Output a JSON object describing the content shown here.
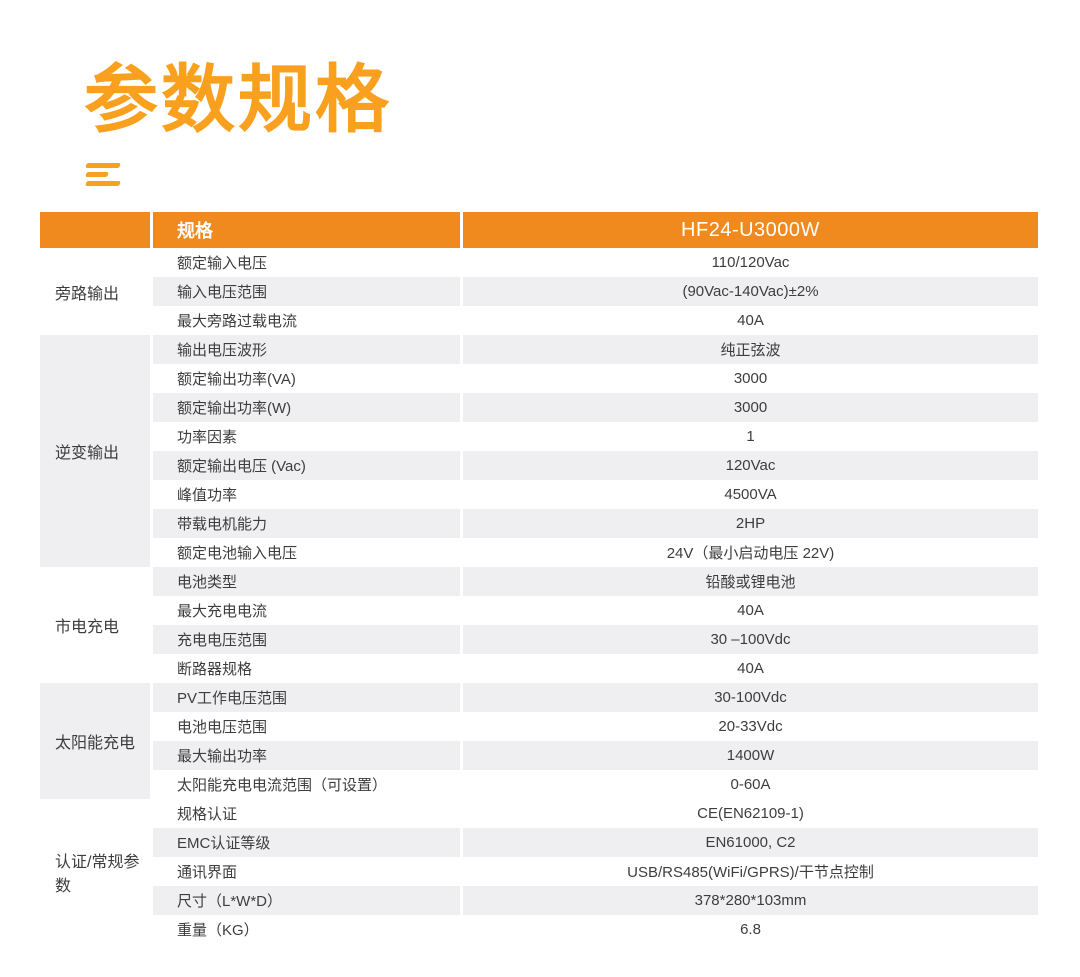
{
  "page": {
    "title": "参数规格"
  },
  "icons": {
    "menu_icon": "menu-icon"
  },
  "colors": {
    "title_orange": "#F9A01F",
    "header_orange": "#F0891E",
    "stripe_gray": "#EFEFF1",
    "text_dark": "#3D3D3D",
    "header_text": "#FFFFFF"
  },
  "table": {
    "header": {
      "spec_label": "规格",
      "model": "HF24-U3000W"
    },
    "sections": [
      {
        "category": "旁路输出",
        "shaded": false,
        "rows": [
          {
            "param": "额定输入电压",
            "value": "110/120Vac",
            "shade": false
          },
          {
            "param": "输入电压范围",
            "value": "(90Vac-140Vac)±2%",
            "shade": true
          },
          {
            "param": "最大旁路过载电流",
            "value": "40A",
            "shade": false
          }
        ]
      },
      {
        "category": "逆变输出",
        "shaded": true,
        "rows": [
          {
            "param": "输出电压波形",
            "value": "纯正弦波",
            "shade": true
          },
          {
            "param": "额定输出功率(VA)",
            "value": "3000",
            "shade": false
          },
          {
            "param": "额定输出功率(W)",
            "value": "3000",
            "shade": true
          },
          {
            "param": "功率因素",
            "value": "1",
            "shade": false
          },
          {
            "param": "额定输出电压 (Vac)",
            "value": "120Vac",
            "shade": true
          },
          {
            "param": "峰值功率",
            "value": "4500VA",
            "shade": false
          },
          {
            "param": "带载电机能力",
            "value": "2HP",
            "shade": true
          },
          {
            "param": "额定电池输入电压",
            "value": "24V（最小启动电压 22V)",
            "shade": false
          }
        ]
      },
      {
        "category": "市电充电",
        "shaded": false,
        "rows": [
          {
            "param": "电池类型",
            "value": "铅酸或锂电池",
            "shade": true
          },
          {
            "param": "最大充电电流",
            "value": "40A",
            "shade": false
          },
          {
            "param": "充电电压范围",
            "value": "30 –100Vdc",
            "shade": true
          },
          {
            "param": "断路器规格",
            "value": "40A",
            "shade": false
          }
        ]
      },
      {
        "category": "太阳能充电",
        "shaded": true,
        "rows": [
          {
            "param": "PV工作电压范围",
            "value": "30-100Vdc",
            "shade": true
          },
          {
            "param": "电池电压范围",
            "value": "20-33Vdc",
            "shade": false
          },
          {
            "param": "最大输出功率",
            "value": "1400W",
            "shade": true
          },
          {
            "param": "太阳能充电电流范围（可设置）",
            "value": "0-60A",
            "shade": false
          }
        ]
      },
      {
        "category": "认证/常规参数",
        "shaded": false,
        "rows": [
          {
            "param": "规格认证",
            "value": "CE(EN62109-1)",
            "shade": false
          },
          {
            "param": "EMC认证等级",
            "value": "EN61000, C2",
            "shade": true
          },
          {
            "param": "通讯界面",
            "value": "USB/RS485(WiFi/GPRS)/干节点控制",
            "shade": false
          },
          {
            "param": "尺寸（L*W*D）",
            "value": "378*280*103mm",
            "shade": true
          },
          {
            "param": "重量（KG）",
            "value": "6.8",
            "shade": false
          }
        ]
      }
    ]
  }
}
